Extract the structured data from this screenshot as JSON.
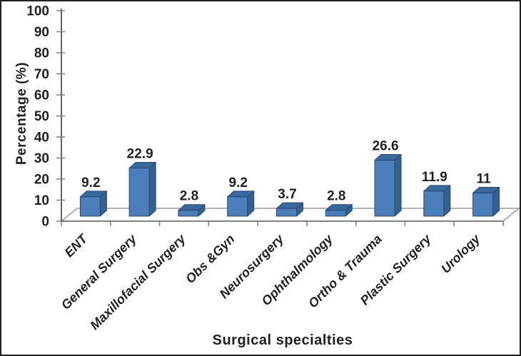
{
  "frame": {
    "background": "#ffffff",
    "border_color": "#212121"
  },
  "chart_data": {
    "type": "bar",
    "style": "3d-column",
    "title": "",
    "xlabel": "Surgical specialties",
    "ylabel": "Percentage (%)",
    "categories": [
      "ENT",
      "General Surgery",
      "Maxillofacial Surgery",
      "Obs &Gyn",
      "Neurosurgery",
      "Ophthalmology",
      "Ortho & Trauma",
      "Plastic Surgery",
      "Urology"
    ],
    "values": [
      9.2,
      22.9,
      2.8,
      9.2,
      3.7,
      2.8,
      26.6,
      11.9,
      11
    ],
    "value_labels": [
      "9.2",
      "22.9",
      "2.8",
      "9.2",
      "3.7",
      "2.8",
      "26.6",
      "11.9",
      "11"
    ],
    "ylim": [
      0,
      100
    ],
    "yticks": [
      0,
      10,
      20,
      30,
      40,
      50,
      60,
      70,
      80,
      90,
      100
    ],
    "grid": false,
    "legend_position": "none",
    "colors": {
      "bar_front": "#4d7ebc",
      "bar_top": "#39689f",
      "bar_side": "#35608f",
      "bar_outline": "#27496e",
      "axis_line": "#666666",
      "tick_line": "#7f7f7f",
      "floor_line": "#9a9a9a",
      "text": "#1f1f1f"
    }
  }
}
